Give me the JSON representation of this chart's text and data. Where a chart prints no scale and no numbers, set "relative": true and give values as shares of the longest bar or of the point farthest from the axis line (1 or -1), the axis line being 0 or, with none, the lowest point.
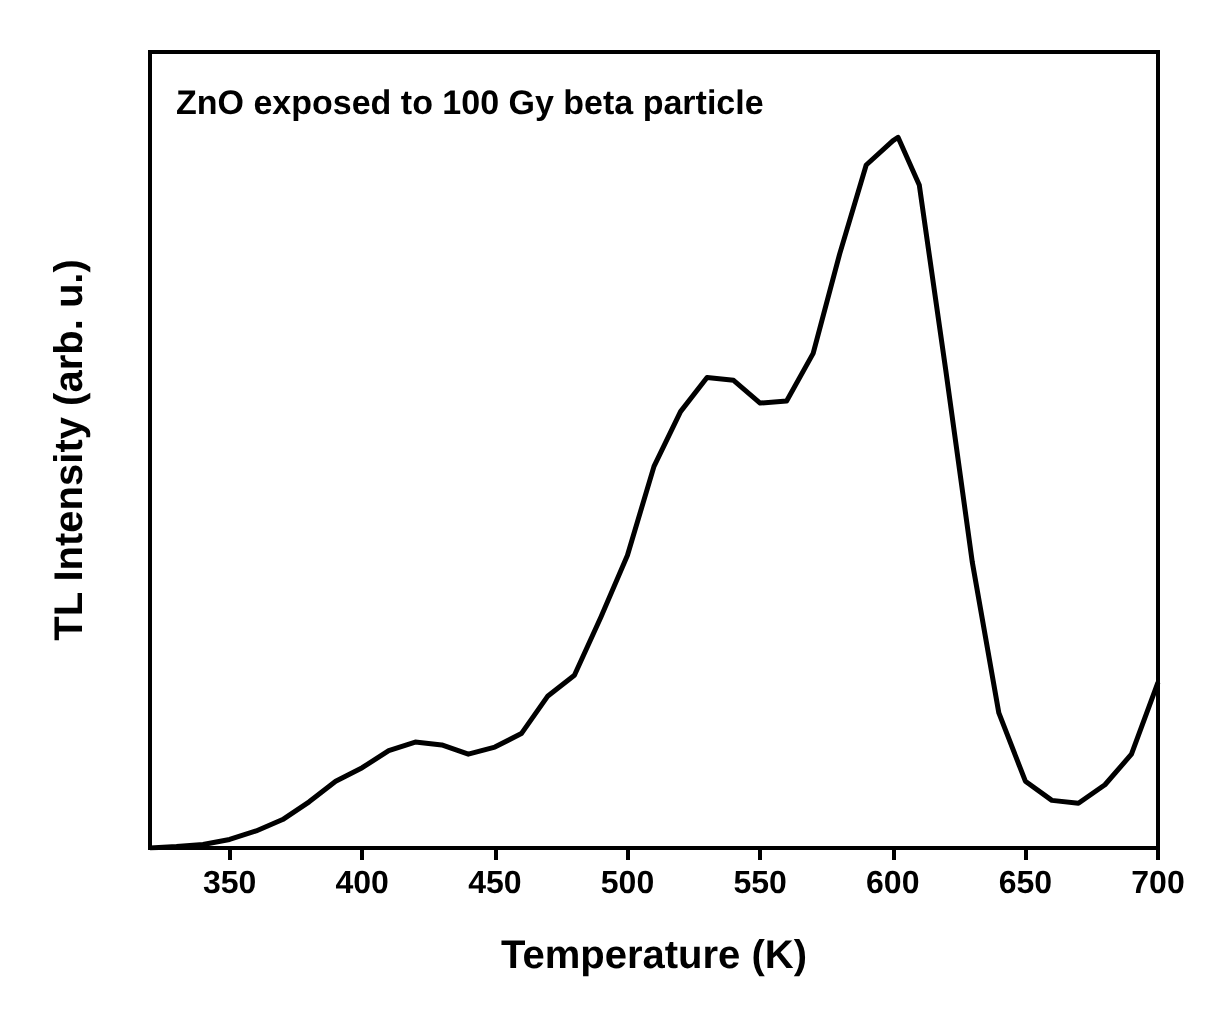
{
  "chart_data": {
    "type": "line",
    "title": "ZnO exposed to 100 Gy beta particle",
    "xlabel": "Temperature (K)",
    "ylabel": "TL Intensity (arb. u.)",
    "relative": true,
    "xlim": [
      320,
      700
    ],
    "xticks": [
      350,
      400,
      450,
      500,
      550,
      600,
      650,
      700
    ],
    "grid": false,
    "marker": "none",
    "line_style": "solid",
    "series": [
      {
        "color": "#000000",
        "x": [
          320,
          330,
          340,
          350,
          360,
          370,
          380,
          390,
          400,
          410,
          420,
          430,
          440,
          450,
          460,
          470,
          480,
          490,
          500,
          510,
          520,
          530,
          540,
          550,
          560,
          570,
          580,
          590,
          600,
          602,
          610,
          620,
          630,
          640,
          650,
          660,
          670,
          680,
          690,
          700
        ],
        "values": [
          0,
          0.002,
          0.005,
          0.012,
          0.024,
          0.04,
          0.065,
          0.094,
          0.113,
          0.137,
          0.149,
          0.145,
          0.132,
          0.142,
          0.161,
          0.214,
          0.243,
          0.325,
          0.412,
          0.537,
          0.614,
          0.662,
          0.658,
          0.626,
          0.629,
          0.696,
          0.836,
          0.961,
          0.995,
          1,
          0.933,
          0.672,
          0.402,
          0.19,
          0.094,
          0.067,
          0.063,
          0.089,
          0.132,
          0.233
        ]
      }
    ]
  }
}
